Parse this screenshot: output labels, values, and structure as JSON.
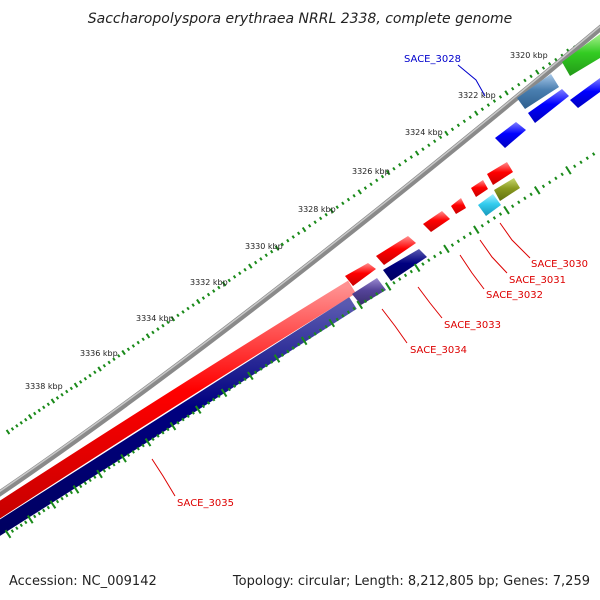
{
  "title": "Saccharopolyspora erythraea NRRL 2338, complete genome",
  "footer": {
    "accession": "Accession: NC_009142",
    "summary": "Topology: circular; Length: 8,212,805 bp; Genes: 7,259"
  },
  "colors": {
    "backbone": "#808080",
    "forward_cds": "#ff0000",
    "reverse_cds": "#000080",
    "highlight_blue": "#0000ff",
    "steel": "#4a7fb0",
    "purple": "#554499",
    "green": "#33cc22",
    "olive": "#8a9a20",
    "cyan": "#33ccee",
    "tick_green": "#1a8a1a",
    "label_red": "#dd0000",
    "label_blue": "#0000cc"
  },
  "scale_labels": [
    "3320 kbp",
    "3322 kbp",
    "3324 kbp",
    "3326 kbp",
    "3328 kbp",
    "3330 kbp",
    "3332 kbp",
    "3334 kbp",
    "3336 kbp",
    "3338 kbp"
  ],
  "gene_labels": [
    {
      "id": "SACE_3028",
      "color_key": "label_blue"
    },
    {
      "id": "SACE_3030",
      "color_key": "label_red"
    },
    {
      "id": "SACE_3031",
      "color_key": "label_red"
    },
    {
      "id": "SACE_3032",
      "color_key": "label_red"
    },
    {
      "id": "SACE_3033",
      "color_key": "label_red"
    },
    {
      "id": "SACE_3034",
      "color_key": "label_red"
    },
    {
      "id": "SACE_3035",
      "color_key": "label_red"
    }
  ]
}
